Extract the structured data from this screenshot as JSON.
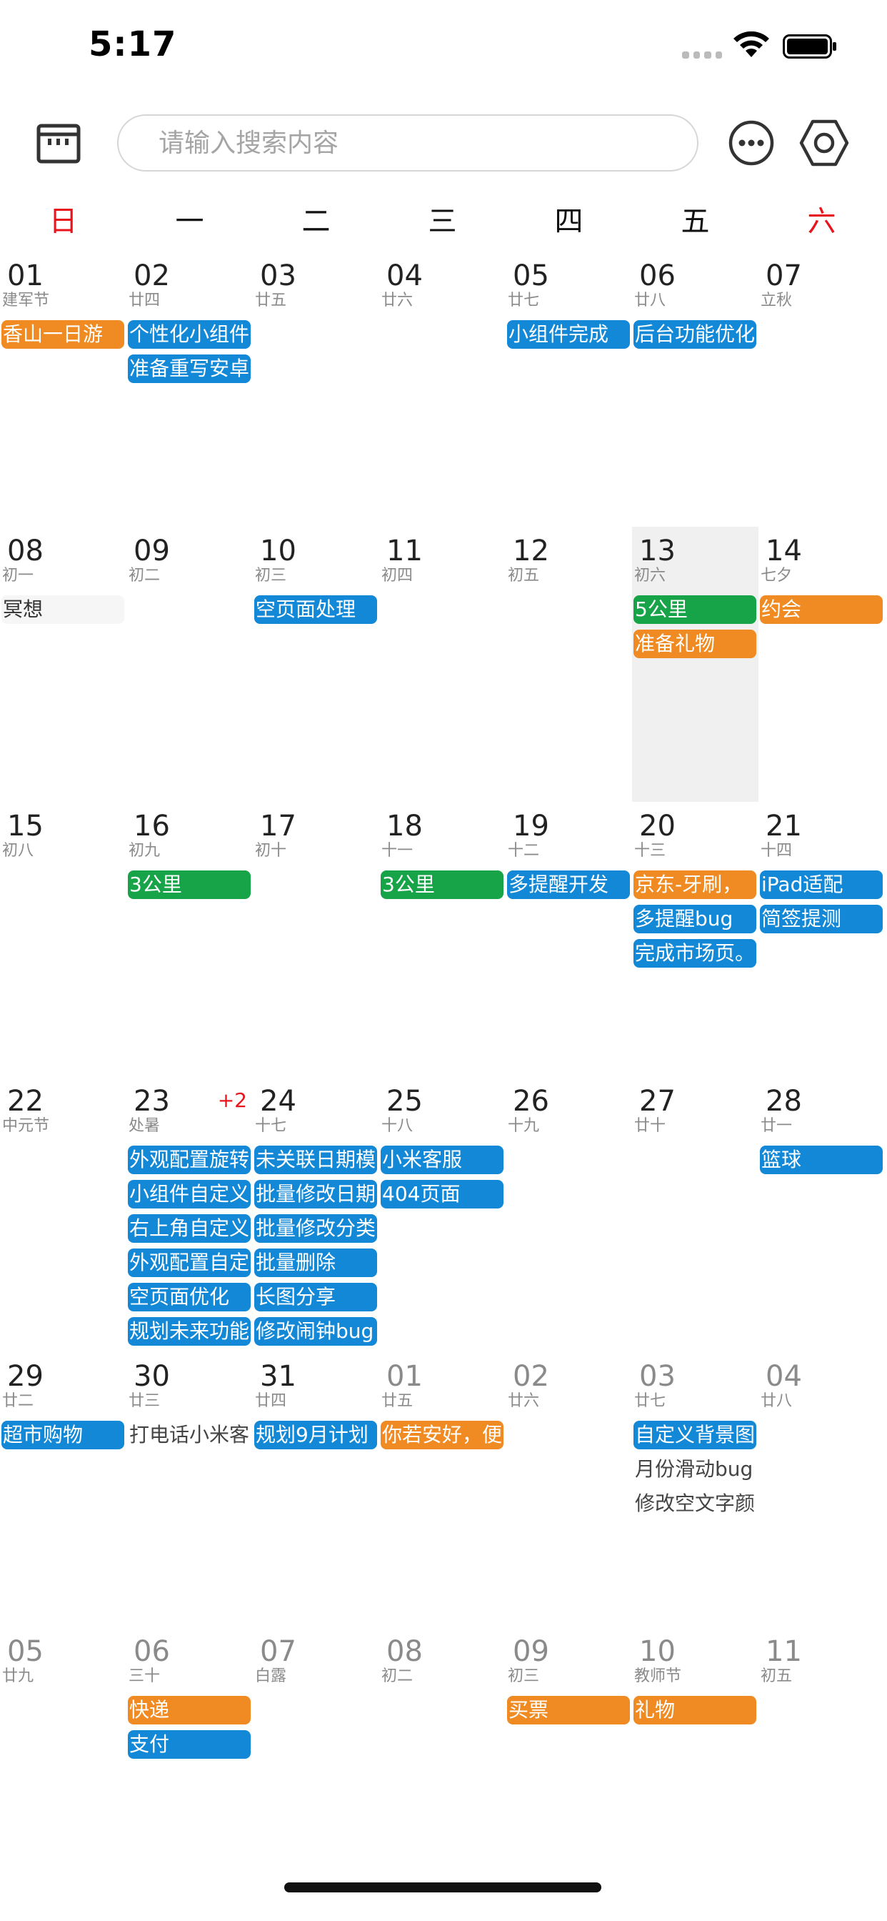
{
  "status_bar": {
    "time": "5:17"
  },
  "toolbar": {
    "search_placeholder": "请输入搜索内容"
  },
  "weekdays": [
    "日",
    "一",
    "二",
    "三",
    "四",
    "五",
    "六"
  ],
  "colors": {
    "blue": "#1388d6",
    "orange": "#ef8b22",
    "green": "#17a347",
    "red": "#e8141c",
    "today_bg": "#f0f0f0"
  },
  "weeks": [
    [
      {
        "d": "01",
        "l": "建军节",
        "ev": [
          {
            "t": "香山一日游",
            "c": "orange"
          }
        ]
      },
      {
        "d": "02",
        "l": "廿四",
        "ev": [
          {
            "t": "个性化小组件",
            "c": "blue"
          },
          {
            "t": "准备重写安卓",
            "c": "blue"
          }
        ]
      },
      {
        "d": "03",
        "l": "廿五",
        "ev": []
      },
      {
        "d": "04",
        "l": "廿六",
        "ev": []
      },
      {
        "d": "05",
        "l": "廿七",
        "ev": [
          {
            "t": "小组件完成",
            "c": "blue"
          }
        ]
      },
      {
        "d": "06",
        "l": "廿八",
        "ev": [
          {
            "t": "后台功能优化",
            "c": "blue"
          }
        ]
      },
      {
        "d": "07",
        "l": "立秋",
        "ev": []
      }
    ],
    [
      {
        "d": "08",
        "l": "初一",
        "ev": [
          {
            "t": "冥想",
            "c": "plain"
          }
        ]
      },
      {
        "d": "09",
        "l": "初二",
        "ev": []
      },
      {
        "d": "10",
        "l": "初三",
        "ev": [
          {
            "t": "空页面处理",
            "c": "blue"
          }
        ]
      },
      {
        "d": "11",
        "l": "初四",
        "ev": []
      },
      {
        "d": "12",
        "l": "初五",
        "ev": []
      },
      {
        "d": "13",
        "l": "初六",
        "today": true,
        "ev": [
          {
            "t": "5公里",
            "c": "green"
          },
          {
            "t": "准备礼物",
            "c": "orange"
          }
        ]
      },
      {
        "d": "14",
        "l": "七夕",
        "ev": [
          {
            "t": "约会",
            "c": "orange"
          }
        ]
      }
    ],
    [
      {
        "d": "15",
        "l": "初八",
        "ev": []
      },
      {
        "d": "16",
        "l": "初九",
        "ev": [
          {
            "t": "3公里",
            "c": "green"
          }
        ]
      },
      {
        "d": "17",
        "l": "初十",
        "ev": []
      },
      {
        "d": "18",
        "l": "十一",
        "ev": [
          {
            "t": "3公里",
            "c": "green"
          }
        ]
      },
      {
        "d": "19",
        "l": "十二",
        "ev": [
          {
            "t": "多提醒开发",
            "c": "blue"
          }
        ]
      },
      {
        "d": "20",
        "l": "十三",
        "ev": [
          {
            "t": "京东-牙刷，",
            "c": "orange"
          },
          {
            "t": "多提醒bug",
            "c": "blue"
          },
          {
            "t": "完成市场页。",
            "c": "blue"
          }
        ]
      },
      {
        "d": "21",
        "l": "十四",
        "ev": [
          {
            "t": "iPad适配",
            "c": "blue"
          },
          {
            "t": "简签提测",
            "c": "blue"
          }
        ]
      }
    ],
    [
      {
        "d": "22",
        "l": "中元节",
        "ev": []
      },
      {
        "d": "23",
        "l": "处暑",
        "more": "+2",
        "ev": [
          {
            "t": "外观配置旋转",
            "c": "blue"
          },
          {
            "t": "小组件自定义",
            "c": "blue"
          },
          {
            "t": "右上角自定义",
            "c": "blue"
          },
          {
            "t": "外观配置自定",
            "c": "blue"
          },
          {
            "t": "空页面优化",
            "c": "blue"
          },
          {
            "t": "规划未来功能",
            "c": "blue"
          }
        ]
      },
      {
        "d": "24",
        "l": "十七",
        "ev": [
          {
            "t": "未关联日期模",
            "c": "blue"
          },
          {
            "t": "批量修改日期",
            "c": "blue"
          },
          {
            "t": "批量修改分类",
            "c": "blue"
          },
          {
            "t": "批量删除",
            "c": "blue"
          },
          {
            "t": "长图分享",
            "c": "blue"
          },
          {
            "t": "修改闹钟bug",
            "c": "blue"
          }
        ]
      },
      {
        "d": "25",
        "l": "十八",
        "ev": [
          {
            "t": "小米客服",
            "c": "blue"
          },
          {
            "t": "404页面",
            "c": "blue"
          }
        ]
      },
      {
        "d": "26",
        "l": "十九",
        "ev": []
      },
      {
        "d": "27",
        "l": "廿十",
        "ev": []
      },
      {
        "d": "28",
        "l": "廿一",
        "ev": [
          {
            "t": "篮球",
            "c": "blue"
          }
        ]
      }
    ],
    [
      {
        "d": "29",
        "l": "廿二",
        "ev": [
          {
            "t": "超市购物",
            "c": "blue"
          }
        ]
      },
      {
        "d": "30",
        "l": "廿三",
        "ev": [
          {
            "t": "打电话小米客",
            "c": "text"
          }
        ]
      },
      {
        "d": "31",
        "l": "廿四",
        "ev": [
          {
            "t": "规划9月计划",
            "c": "blue"
          }
        ]
      },
      {
        "d": "01",
        "l": "廿五",
        "other": true,
        "ev": [
          {
            "t": "你若安好，便",
            "c": "orange"
          }
        ]
      },
      {
        "d": "02",
        "l": "廿六",
        "other": true,
        "ev": []
      },
      {
        "d": "03",
        "l": "廿七",
        "other": true,
        "ev": [
          {
            "t": "自定义背景图",
            "c": "blue"
          },
          {
            "t": "月份滑动bug",
            "c": "text"
          },
          {
            "t": "修改空文字颜",
            "c": "text"
          }
        ]
      },
      {
        "d": "04",
        "l": "廿八",
        "other": true,
        "ev": []
      }
    ],
    [
      {
        "d": "05",
        "l": "廿九",
        "other": true,
        "ev": []
      },
      {
        "d": "06",
        "l": "三十",
        "other": true,
        "ev": [
          {
            "t": "快递",
            "c": "orange"
          },
          {
            "t": "支付",
            "c": "blue"
          }
        ]
      },
      {
        "d": "07",
        "l": "白露",
        "other": true,
        "ev": []
      },
      {
        "d": "08",
        "l": "初二",
        "other": true,
        "ev": []
      },
      {
        "d": "09",
        "l": "初三",
        "other": true,
        "ev": [
          {
            "t": "买票",
            "c": "orange"
          }
        ]
      },
      {
        "d": "10",
        "l": "教师节",
        "other": true,
        "ev": [
          {
            "t": "礼物",
            "c": "orange"
          }
        ]
      },
      {
        "d": "11",
        "l": "初五",
        "other": true,
        "ev": []
      }
    ]
  ]
}
